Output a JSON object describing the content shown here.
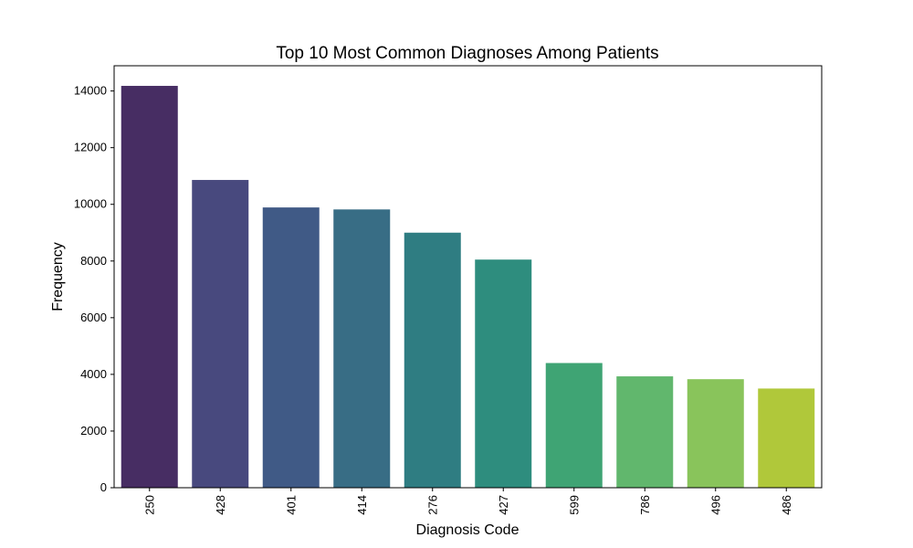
{
  "chart_data": {
    "type": "bar",
    "title": "Top 10 Most Common Diagnoses Among Patients",
    "xlabel": "Diagnosis Code",
    "ylabel": "Frequency",
    "categories": [
      "250",
      "428",
      "401",
      "414",
      "276",
      "427",
      "599",
      "786",
      "496",
      "486"
    ],
    "values": [
      14180,
      10860,
      9890,
      9820,
      9000,
      8050,
      4400,
      3930,
      3830,
      3500
    ],
    "ylim": [
      0,
      14890
    ],
    "yticks": [
      0,
      2000,
      4000,
      6000,
      8000,
      10000,
      12000,
      14000
    ],
    "ytick_labels": [
      "0",
      "2000",
      "4000",
      "6000",
      "8000",
      "10000",
      "12000",
      "14000"
    ],
    "colors": [
      "#472d63",
      "#48497e",
      "#405a86",
      "#386d85",
      "#2f7d82",
      "#2e8d7e",
      "#3fa474",
      "#61b76d",
      "#89c45b",
      "#b0c83a"
    ],
    "grid": false,
    "legend": "none",
    "xtick_rotation": "vertical"
  }
}
